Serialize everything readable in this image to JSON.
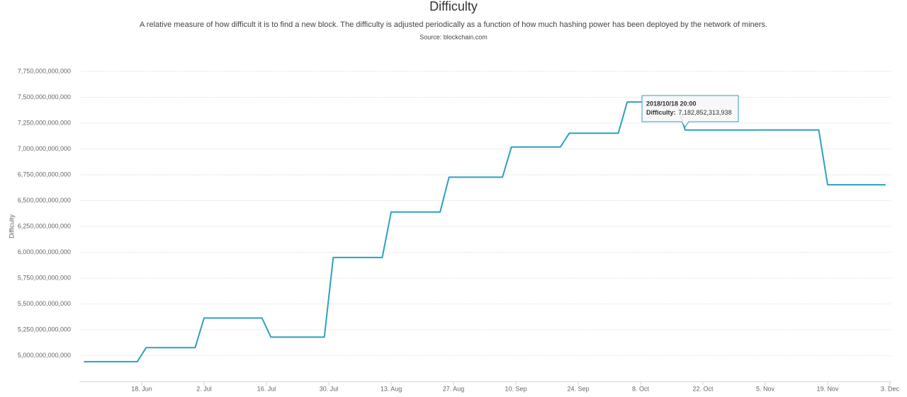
{
  "chart_data": {
    "type": "line",
    "title": "Difficulty",
    "subtitle": "A relative measure of how difficult it is to find a new block. The difficulty is adjusted periodically as a function of how much hashing power has been deployed by the network of miners.",
    "source": "Source: blockchain.com",
    "y_label": "Difficulty",
    "color": "#2f9fc1",
    "grid": true,
    "x": [
      "2018-06-05",
      "2018-06-17",
      "2018-06-19",
      "2018-06-30",
      "2018-07-02",
      "2018-07-15",
      "2018-07-17",
      "2018-07-29",
      "2018-07-31",
      "2018-08-11",
      "2018-08-13",
      "2018-08-24",
      "2018-08-26",
      "2018-09-07",
      "2018-09-09",
      "2018-09-20",
      "2018-09-22",
      "2018-10-03",
      "2018-10-05",
      "2018-10-16",
      "2018-10-18",
      "2018-11-03",
      "2018-11-04",
      "2018-11-17",
      "2018-11-19",
      "2018-12-02"
    ],
    "values": [
      4940704885521,
      4940704885521,
      5077499034879,
      5077499034879,
      5363934956287,
      5363934956287,
      5178671069072,
      5178671069072,
      5949437371609,
      5949437371609,
      6389316883511,
      6389316883511,
      6727225469722,
      6727225469722,
      7019199231177,
      7019199231177,
      7152633351906,
      7152633351906,
      7454968648263,
      7454968648263,
      7182852313938,
      7182852313938,
      7184404942701,
      7184404942701,
      6653303141405,
      6653303141405
    ],
    "xlim": [
      "2018-06-04",
      "2018-12-03"
    ],
    "xticks": [
      {
        "value": "2018-06-18",
        "label": "18. Jun"
      },
      {
        "value": "2018-07-02",
        "label": "2. Jul"
      },
      {
        "value": "2018-07-16",
        "label": "16. Jul"
      },
      {
        "value": "2018-07-30",
        "label": "30. Jul"
      },
      {
        "value": "2018-08-13",
        "label": "13. Aug"
      },
      {
        "value": "2018-08-27",
        "label": "27. Aug"
      },
      {
        "value": "2018-09-10",
        "label": "10. Sep"
      },
      {
        "value": "2018-09-24",
        "label": "24. Sep"
      },
      {
        "value": "2018-10-08",
        "label": "8. Oct"
      },
      {
        "value": "2018-10-22",
        "label": "22. Oct"
      },
      {
        "value": "2018-11-05",
        "label": "5. Nov"
      },
      {
        "value": "2018-11-19",
        "label": "19. Nov"
      },
      {
        "value": "2018-12-03",
        "label": "3. Dec"
      }
    ],
    "ylim": [
      4750000000000,
      7750000000000
    ],
    "yticks": [
      {
        "value": 5000000000000,
        "label": "5,000,000,000,000"
      },
      {
        "value": 5250000000000,
        "label": "5,250,000,000,000"
      },
      {
        "value": 5500000000000,
        "label": "5,500,000,000,000"
      },
      {
        "value": 5750000000000,
        "label": "5,750,000,000,000"
      },
      {
        "value": 6000000000000,
        "label": "6,000,000,000,000"
      },
      {
        "value": 6250000000000,
        "label": "6,250,000,000,000"
      },
      {
        "value": 6500000000000,
        "label": "6,500,000,000,000"
      },
      {
        "value": 6750000000000,
        "label": "6,750,000,000,000"
      },
      {
        "value": 7000000000000,
        "label": "7,000,000,000,000"
      },
      {
        "value": 7250000000000,
        "label": "7,250,000,000,000"
      },
      {
        "value": 7500000000000,
        "label": "7,500,000,000,000"
      },
      {
        "value": 7750000000000,
        "label": "7,750,000,000,000"
      }
    ],
    "tooltip": {
      "title": "2018/10/18 20:00",
      "label": "Difficulty:",
      "point": 20,
      "value_label": "7,182,852,313,938"
    }
  }
}
